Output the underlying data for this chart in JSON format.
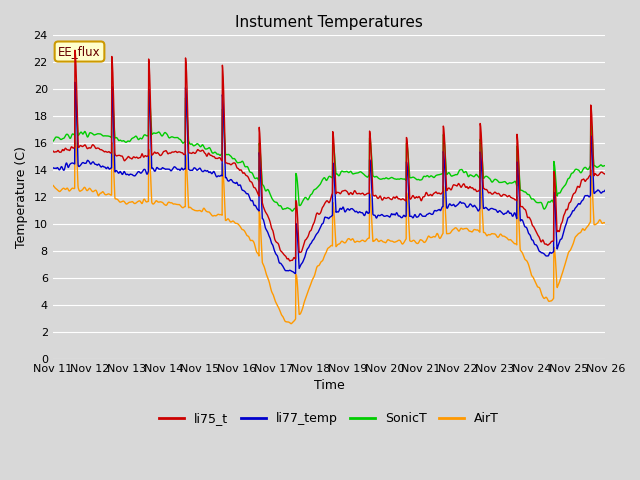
{
  "title": "Instument Temperatures",
  "xlabel": "Time",
  "ylabel": "Temperature (C)",
  "ylim": [
    0,
    24
  ],
  "yticks": [
    0,
    2,
    4,
    6,
    8,
    10,
    12,
    14,
    16,
    18,
    20,
    22,
    24
  ],
  "x_labels": [
    "Nov 11",
    "Nov 12",
    "Nov 13",
    "Nov 14",
    "Nov 15",
    "Nov 16",
    "Nov 17",
    "Nov 18",
    "Nov 19",
    "Nov 20",
    "Nov 21",
    "Nov 22",
    "Nov 23",
    "Nov 24",
    "Nov 25",
    "Nov 26"
  ],
  "n_days": 15,
  "colors": {
    "li75_t": "#cc0000",
    "li77_temp": "#0000cc",
    "SonicT": "#00cc00",
    "AirT": "#ff9900"
  },
  "annotation_text": "EE_flux",
  "bg_color": "#d8d8d8",
  "grid_color": "#ffffff",
  "title_fontsize": 11,
  "tick_fontsize": 8,
  "label_fontsize": 9
}
